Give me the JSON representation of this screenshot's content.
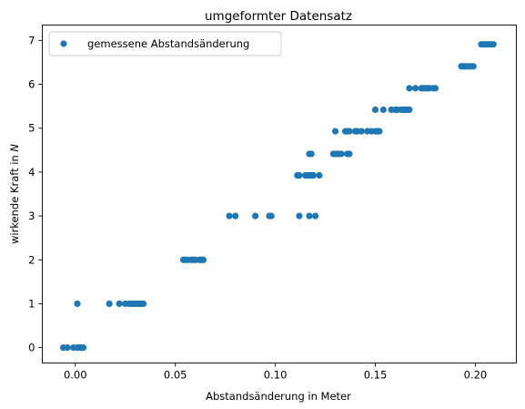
{
  "chart_data": {
    "type": "scatter",
    "title": "umgeformter Datensatz",
    "xlabel": "Abstandsänderung in Meter",
    "ylabel_prefix": "wirkende Kraft in ",
    "ylabel_unit": "N",
    "xlim": [
      -0.0165,
      0.2205
    ],
    "ylim": [
      -0.35,
      7.35
    ],
    "xticks": [
      0.0,
      0.05,
      0.1,
      0.15,
      0.2
    ],
    "xtick_labels": [
      "0.00",
      "0.05",
      "0.10",
      "0.15",
      "0.20"
    ],
    "yticks": [
      0,
      1,
      2,
      3,
      4,
      5,
      6,
      7
    ],
    "ytick_labels": [
      "0",
      "1",
      "2",
      "3",
      "4",
      "5",
      "6",
      "7"
    ],
    "grid": false,
    "legend_position": "upper-left",
    "series": [
      {
        "name": "gemessene Abstandsänderung",
        "color": "#1f77b4",
        "points": [
          [
            -0.006,
            0
          ],
          [
            -0.004,
            0
          ],
          [
            -0.001,
            0
          ],
          [
            0.001,
            0
          ],
          [
            0.002,
            0
          ],
          [
            0.003,
            0
          ],
          [
            0.004,
            0
          ],
          [
            0.001,
            1
          ],
          [
            0.017,
            1
          ],
          [
            0.022,
            1
          ],
          [
            0.025,
            1
          ],
          [
            0.027,
            1
          ],
          [
            0.028,
            1
          ],
          [
            0.029,
            1
          ],
          [
            0.03,
            1
          ],
          [
            0.031,
            1
          ],
          [
            0.032,
            1
          ],
          [
            0.033,
            1
          ],
          [
            0.034,
            1
          ],
          [
            0.054,
            2
          ],
          [
            0.055,
            2
          ],
          [
            0.056,
            2
          ],
          [
            0.058,
            2
          ],
          [
            0.059,
            2
          ],
          [
            0.06,
            2
          ],
          [
            0.062,
            2
          ],
          [
            0.063,
            2
          ],
          [
            0.064,
            2
          ],
          [
            0.077,
            3
          ],
          [
            0.08,
            3
          ],
          [
            0.09,
            3
          ],
          [
            0.097,
            3
          ],
          [
            0.098,
            3
          ],
          [
            0.112,
            3
          ],
          [
            0.117,
            3
          ],
          [
            0.12,
            3
          ],
          [
            0.111,
            3.925
          ],
          [
            0.112,
            3.925
          ],
          [
            0.115,
            3.925
          ],
          [
            0.116,
            3.925
          ],
          [
            0.117,
            3.925
          ],
          [
            0.118,
            3.925
          ],
          [
            0.119,
            3.925
          ],
          [
            0.122,
            3.925
          ],
          [
            0.117,
            4.415
          ],
          [
            0.118,
            4.415
          ],
          [
            0.129,
            4.415
          ],
          [
            0.13,
            4.415
          ],
          [
            0.131,
            4.415
          ],
          [
            0.132,
            4.415
          ],
          [
            0.133,
            4.415
          ],
          [
            0.136,
            4.415
          ],
          [
            0.137,
            4.415
          ],
          [
            0.13,
            4.93
          ],
          [
            0.135,
            4.93
          ],
          [
            0.136,
            4.93
          ],
          [
            0.137,
            4.93
          ],
          [
            0.14,
            4.93
          ],
          [
            0.141,
            4.93
          ],
          [
            0.143,
            4.93
          ],
          [
            0.146,
            4.93
          ],
          [
            0.148,
            4.93
          ],
          [
            0.15,
            4.93
          ],
          [
            0.151,
            4.93
          ],
          [
            0.152,
            4.93
          ],
          [
            0.15,
            5.42
          ],
          [
            0.154,
            5.42
          ],
          [
            0.158,
            5.42
          ],
          [
            0.16,
            5.42
          ],
          [
            0.161,
            5.42
          ],
          [
            0.163,
            5.42
          ],
          [
            0.164,
            5.42
          ],
          [
            0.165,
            5.42
          ],
          [
            0.166,
            5.42
          ],
          [
            0.167,
            5.42
          ],
          [
            0.167,
            5.91
          ],
          [
            0.17,
            5.91
          ],
          [
            0.173,
            5.91
          ],
          [
            0.174,
            5.91
          ],
          [
            0.175,
            5.91
          ],
          [
            0.176,
            5.91
          ],
          [
            0.177,
            5.91
          ],
          [
            0.179,
            5.91
          ],
          [
            0.18,
            5.91
          ],
          [
            0.193,
            6.41
          ],
          [
            0.194,
            6.41
          ],
          [
            0.195,
            6.41
          ],
          [
            0.196,
            6.41
          ],
          [
            0.197,
            6.41
          ],
          [
            0.198,
            6.41
          ],
          [
            0.199,
            6.41
          ],
          [
            0.203,
            6.91
          ],
          [
            0.204,
            6.91
          ],
          [
            0.205,
            6.91
          ],
          [
            0.206,
            6.91
          ],
          [
            0.207,
            6.91
          ],
          [
            0.208,
            6.91
          ],
          [
            0.209,
            6.91
          ]
        ]
      }
    ]
  }
}
